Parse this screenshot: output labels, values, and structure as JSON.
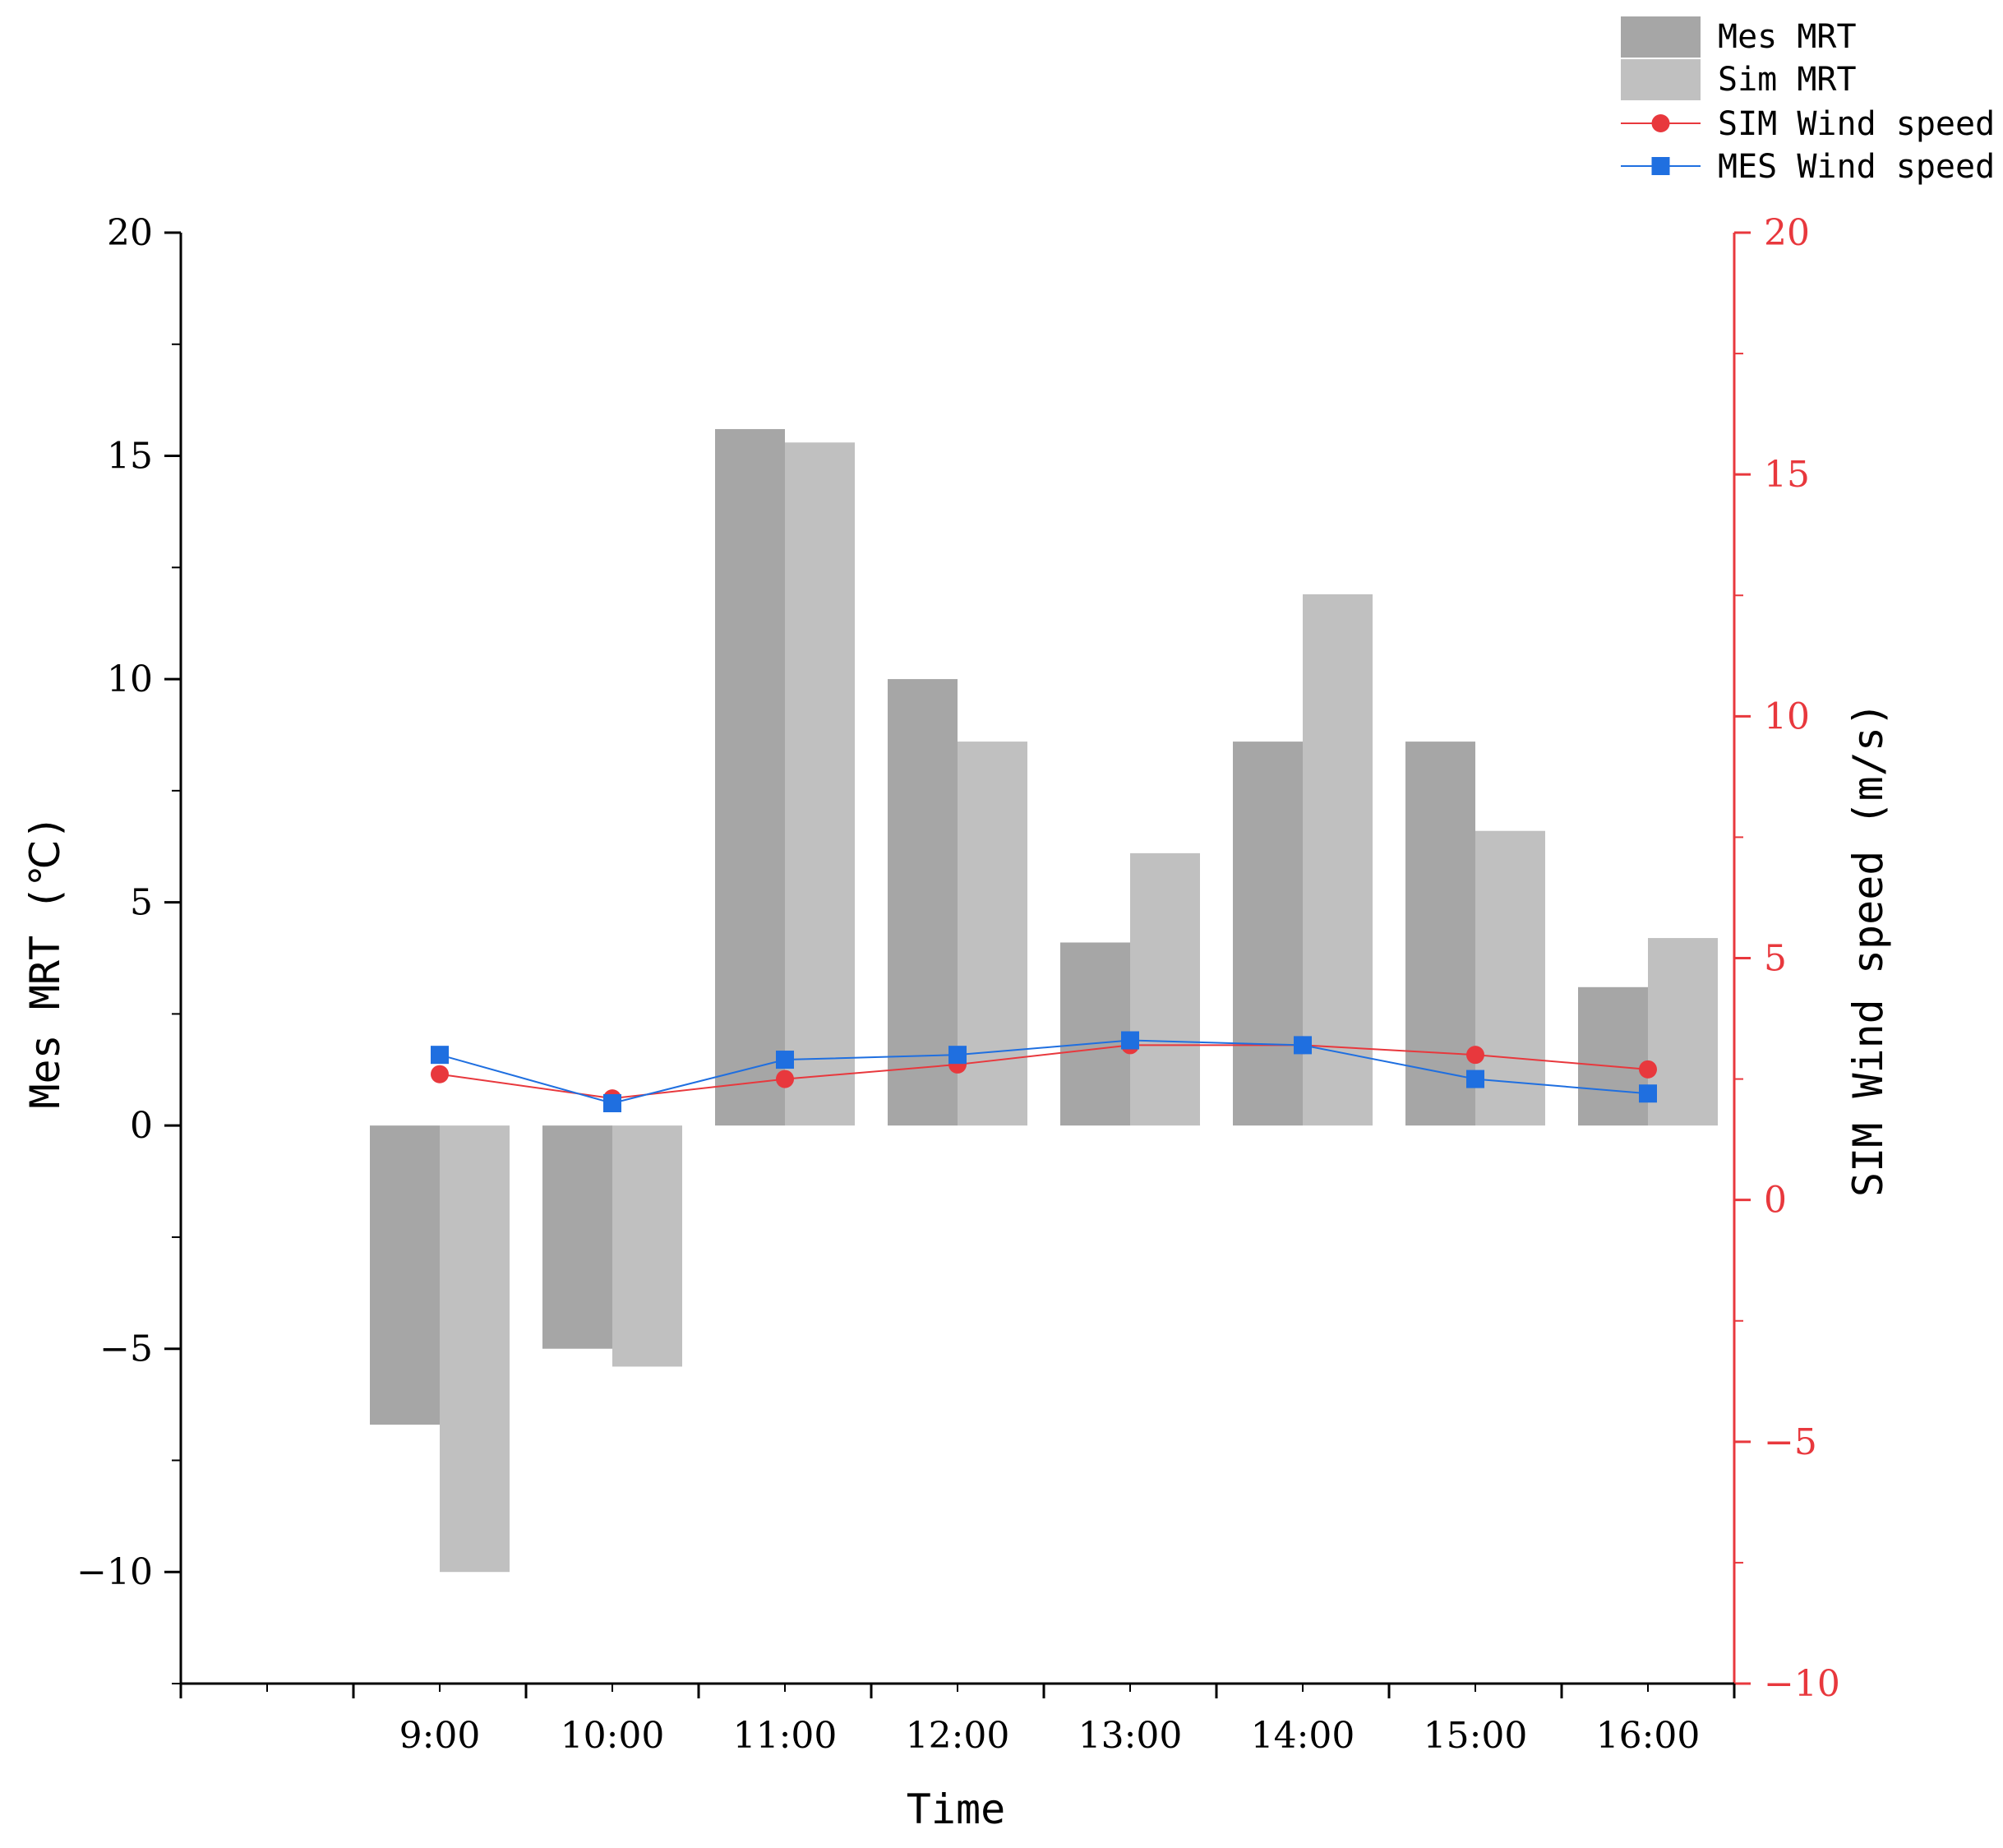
{
  "chart_data": {
    "type": "bar",
    "categories": [
      "9:00",
      "10:00",
      "11:00",
      "12:00",
      "13:00",
      "14:00",
      "15:00",
      "16:00"
    ],
    "bar_series": [
      {
        "name": "Mes MRT",
        "color": "#a6a6a6",
        "values": [
          -6.7,
          -5.0,
          15.6,
          10.0,
          4.1,
          8.6,
          8.6,
          3.1
        ]
      },
      {
        "name": "Sim MRT",
        "color": "#c0c0c0",
        "values": [
          -10.0,
          -5.4,
          15.3,
          8.6,
          6.1,
          11.9,
          6.6,
          4.2
        ]
      }
    ],
    "line_series": [
      {
        "name": "SIM Wind speed",
        "color": "#e8383d",
        "marker": "circle",
        "values": [
          2.6,
          2.1,
          2.5,
          2.8,
          3.2,
          3.2,
          3.0,
          2.7
        ]
      },
      {
        "name": "MES Wind speed",
        "color": "#1f6fe0",
        "marker": "square",
        "values": [
          3.0,
          2.0,
          2.9,
          3.0,
          3.3,
          3.2,
          2.5,
          2.2
        ]
      }
    ],
    "xlabel": "Time",
    "ylabel": "Mes MRT (℃)",
    "y2label": "SIM Wind speed (m/s)",
    "ylim": [
      -12.5,
      20
    ],
    "y2lim": [
      -10,
      20
    ],
    "yticks": [
      -10,
      -5,
      0,
      5,
      10,
      15,
      20
    ],
    "y2ticks": [
      -10,
      -5,
      0,
      5,
      10,
      15,
      20
    ],
    "yticklabels": [
      "−10",
      "−5",
      "0",
      "5",
      "10",
      "15",
      "20"
    ],
    "y2ticklabels": [
      "−10",
      "−5",
      "0",
      "5",
      "10",
      "15",
      "20"
    ],
    "y2_axis_color": "#e8383d",
    "axis_color": "#000000",
    "grid": false,
    "legend_position": "top-right"
  }
}
